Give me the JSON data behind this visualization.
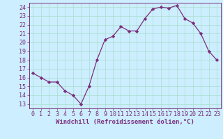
{
  "x": [
    0,
    1,
    2,
    3,
    4,
    5,
    6,
    7,
    8,
    9,
    10,
    11,
    12,
    13,
    14,
    15,
    16,
    17,
    18,
    19,
    20,
    21,
    22,
    23
  ],
  "y": [
    16.5,
    16.0,
    15.5,
    15.5,
    14.5,
    14.0,
    13.0,
    15.0,
    18.0,
    20.3,
    20.7,
    21.8,
    21.3,
    21.3,
    22.7,
    23.8,
    24.0,
    23.9,
    24.2,
    22.7,
    22.2,
    21.0,
    19.0,
    18.0
  ],
  "line_color": "#7b2d7b",
  "marker": "D",
  "marker_size": 2.2,
  "bg_color": "#cceeff",
  "grid_color": "#aaddcc",
  "xlabel": "Windchill (Refroidissement éolien,°C)",
  "xlabel_fontsize": 6.5,
  "ylabel_ticks": [
    13,
    14,
    15,
    16,
    17,
    18,
    19,
    20,
    21,
    22,
    23,
    24
  ],
  "xlim": [
    -0.5,
    23.5
  ],
  "ylim": [
    12.5,
    24.5
  ],
  "tick_fontsize": 6.0
}
